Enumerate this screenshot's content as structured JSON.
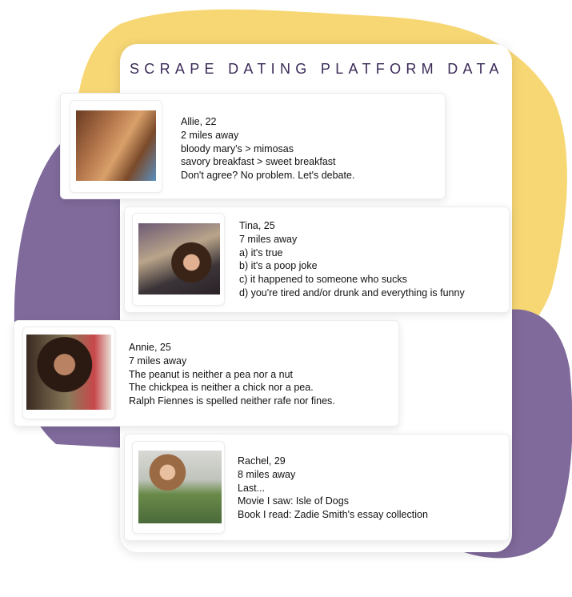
{
  "title": "SCRAPE DATING PLATFORM DATA",
  "colors": {
    "yellow_blob": "#f7d774",
    "purple_blob": "#7f6a9b",
    "title": "#3b2a58"
  },
  "profiles": [
    {
      "lines": [
        "Allie, 22",
        "2 miles away",
        "bloody mary's > mimosas",
        "savory breakfast > sweet breakfast",
        "Don't agree? No problem. Let's debate."
      ]
    },
    {
      "lines": [
        "Tina, 25",
        "7 miles away",
        "a) it's true",
        "b) it's a poop joke",
        "c) it happened to someone who sucks",
        "d) you're tired and/or drunk and everything is funny"
      ]
    },
    {
      "lines": [
        "Annie, 25",
        "7 miles away",
        "The peanut is neither a pea nor a nut",
        "The chickpea is neither a chick nor a pea.",
        "Ralph Fiennes is spelled neither rafe nor fines."
      ]
    },
    {
      "lines": [
        "Rachel, 29",
        "8 miles away",
        "Last...",
        "Movie I saw: Isle of Dogs",
        "Book I read: Zadie Smith's essay collection"
      ]
    }
  ]
}
